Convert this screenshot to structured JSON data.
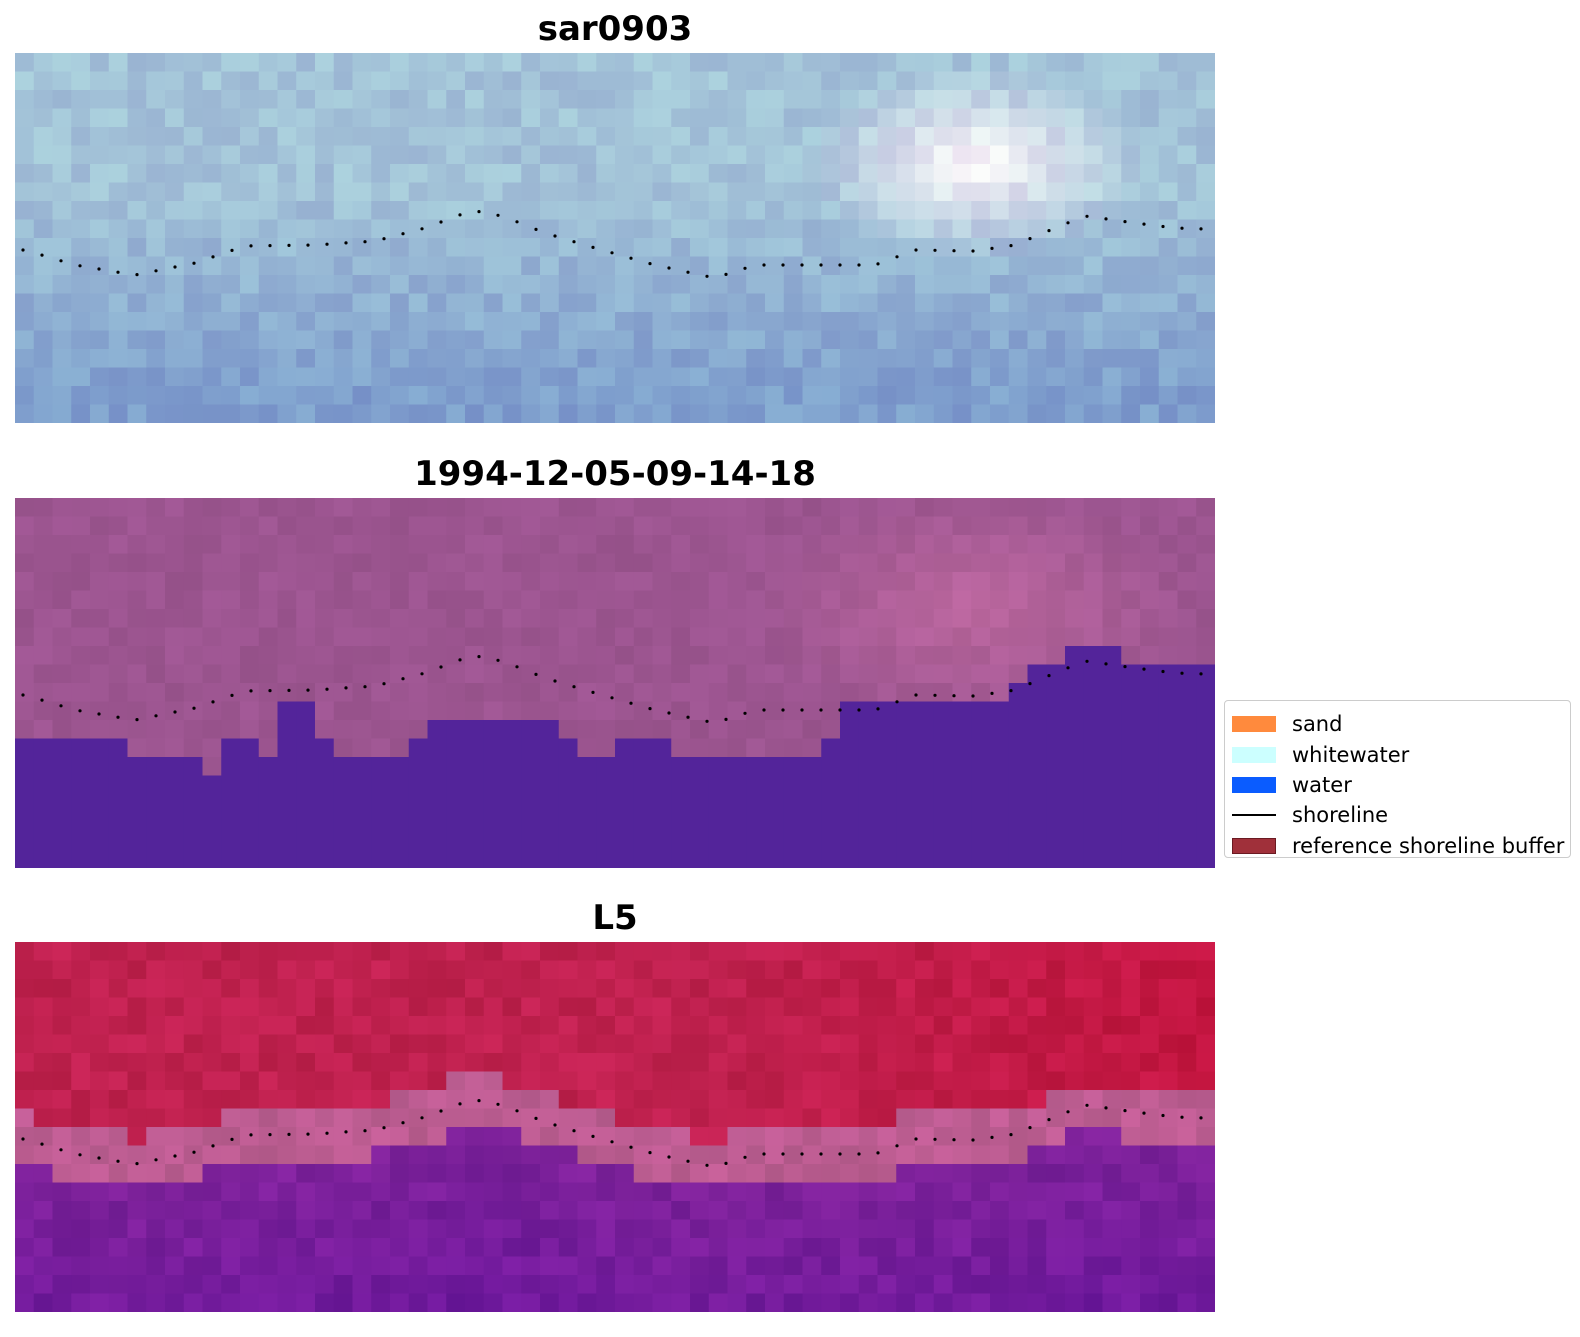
{
  "panels": [
    {
      "title": "sar0903"
    },
    {
      "title": "1994-12-05-09-14-18"
    },
    {
      "title": "L5"
    }
  ],
  "legend": {
    "items": [
      {
        "label": "sand",
        "color": "#ff8a3d",
        "type": "patch"
      },
      {
        "label": "whitewater",
        "color": "#ccffff",
        "type": "patch"
      },
      {
        "label": "water",
        "color": "#0a5cff",
        "type": "patch"
      },
      {
        "label": "shoreline",
        "color": "#000000",
        "type": "line"
      },
      {
        "label": "reference shoreline buffer",
        "color": "#a0303a",
        "edge": "#6b1a22",
        "type": "patch"
      }
    ]
  },
  "colors": {
    "rgb_sky": "#a3c3d8",
    "rgb_cloud": "#f4f0f6",
    "rgb_sea": "#7f9fcd",
    "classified_land": "#9c5590",
    "classified_water": "#53249a",
    "index_land": "#c0214f",
    "index_water": "#80239a",
    "index_transition": "#bd5d92"
  }
}
